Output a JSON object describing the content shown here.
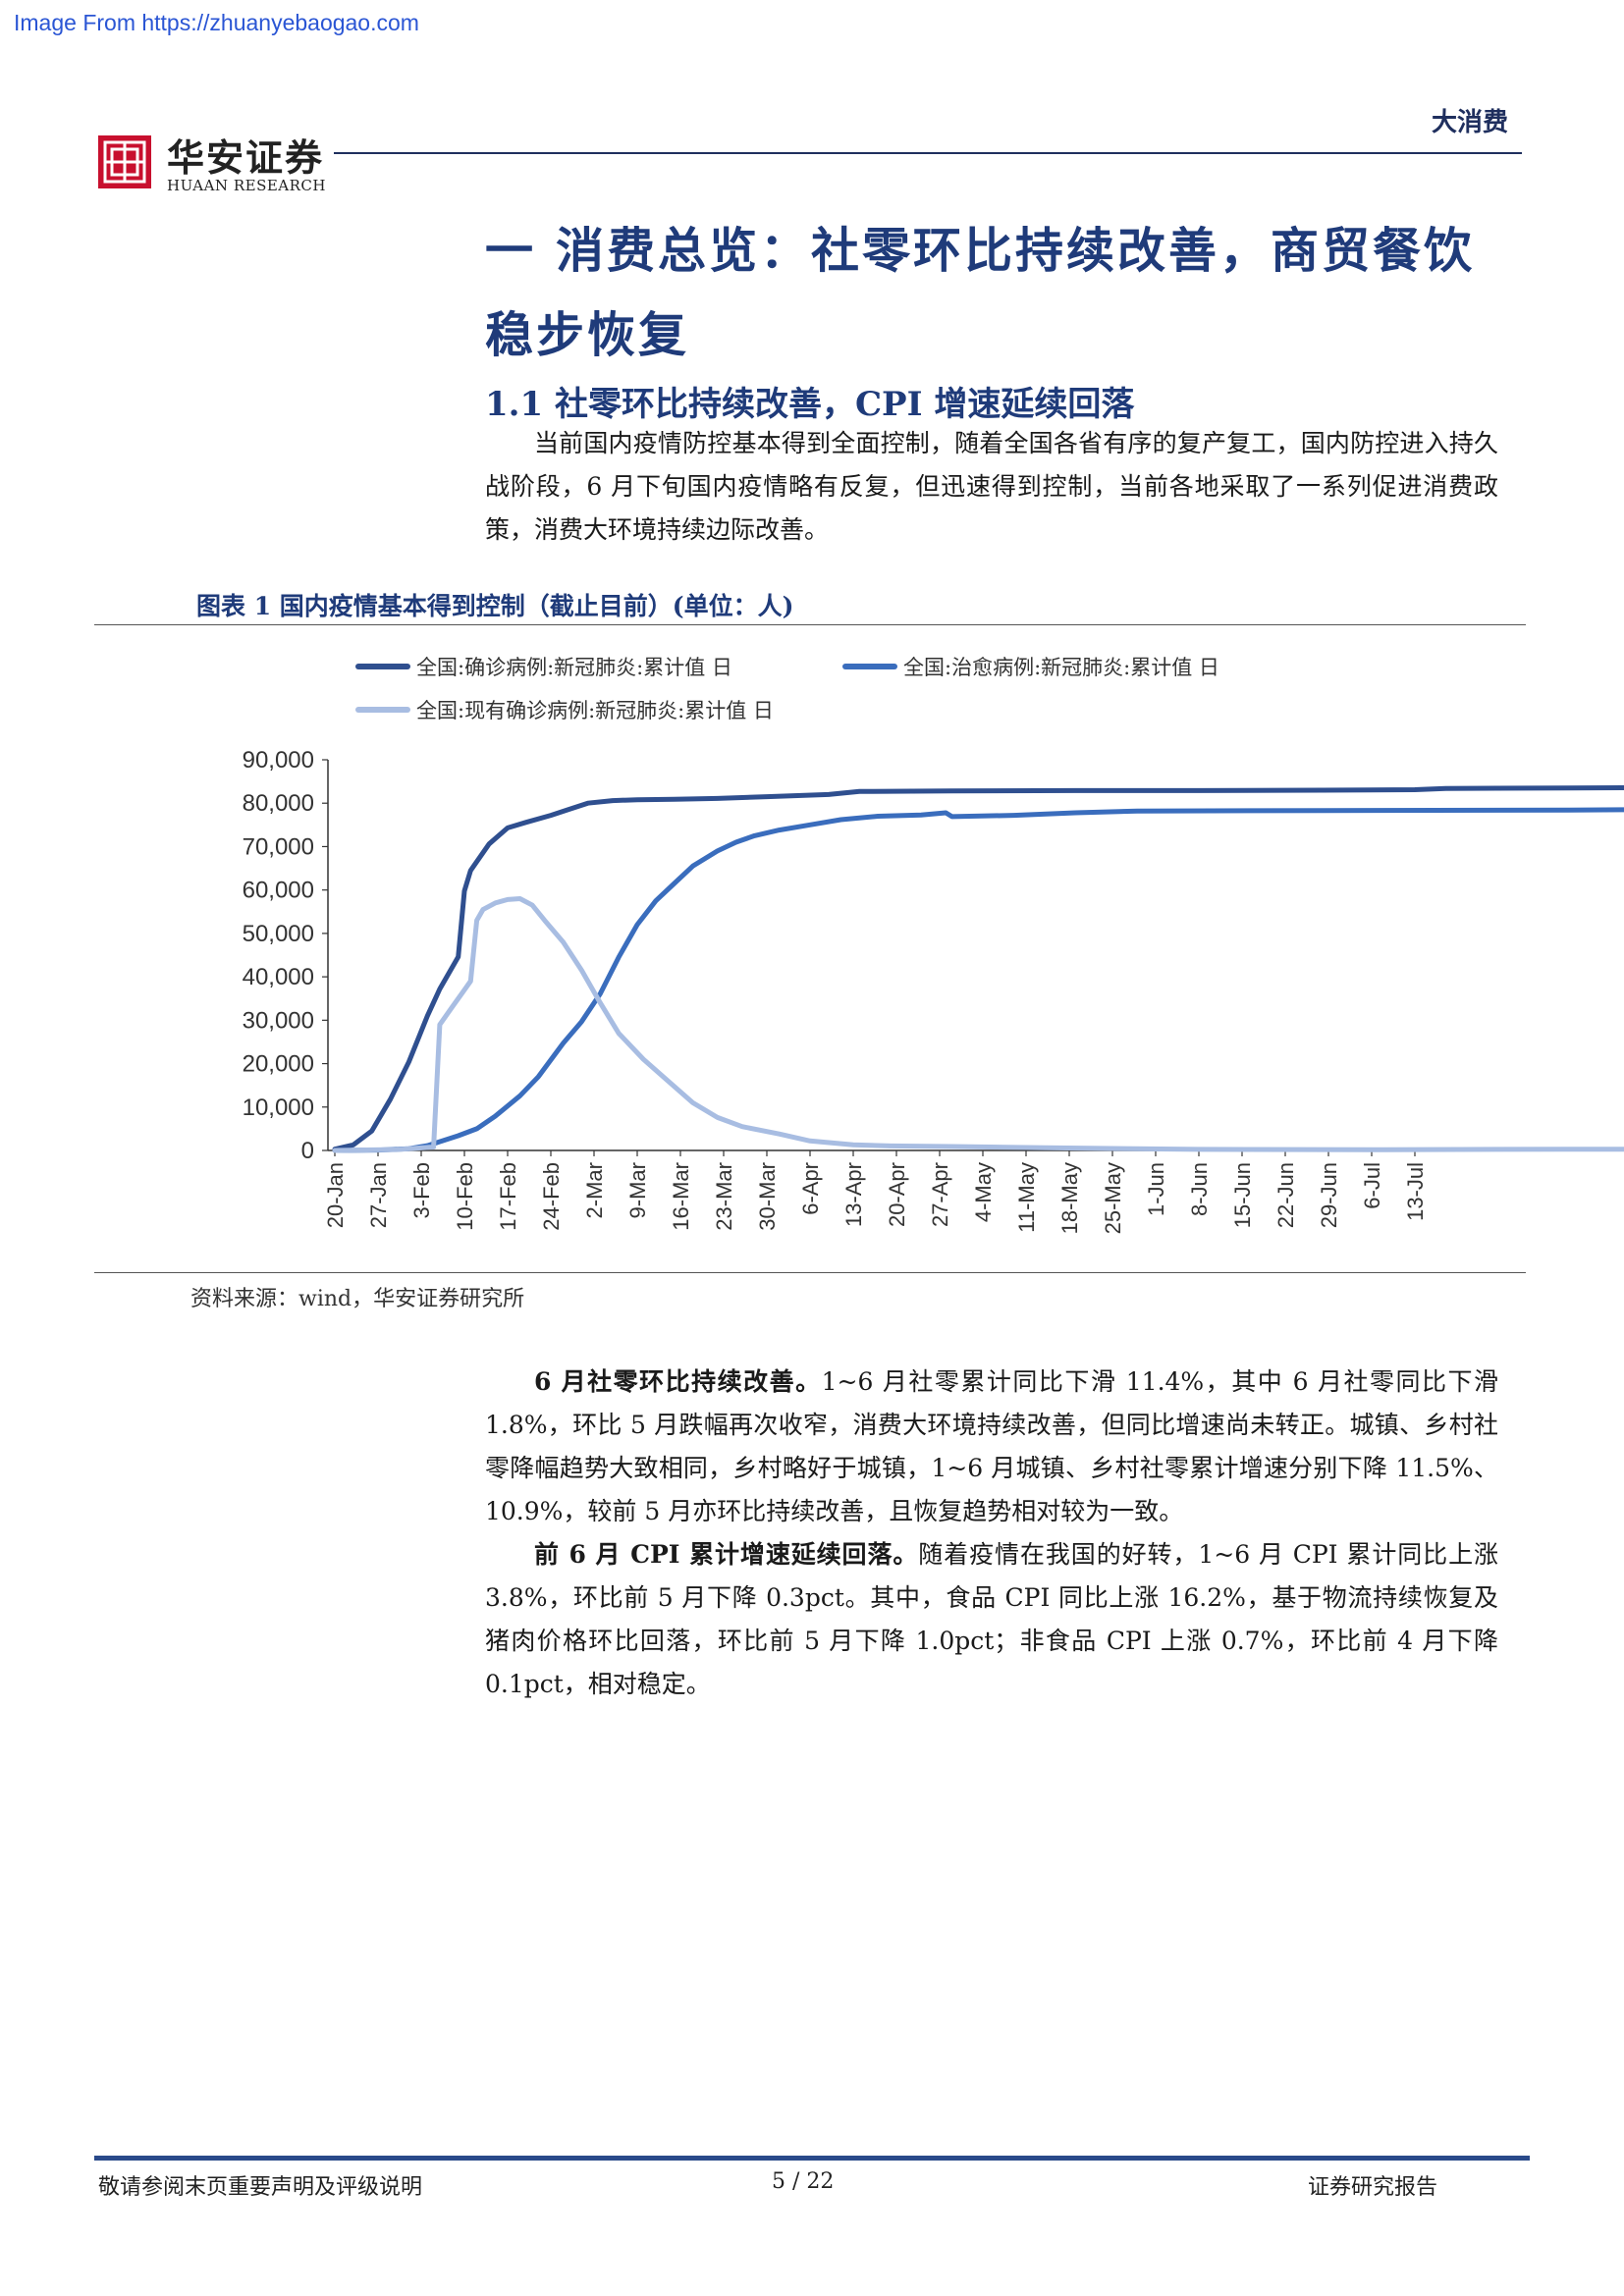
{
  "watermark": "Image From https://zhuanyebaogao.com",
  "header": {
    "brand_cn": "华安证券",
    "brand_en": "HUAAN RESEARCH",
    "section_tag": "大消费"
  },
  "title": "一 消费总览：社零环比持续改善，商贸餐饮稳步恢复",
  "subtitle": "1.1 社零环比持续改善，CPI 增速延续回落",
  "intro": "当前国内疫情防控基本得到全面控制，随着全国各省有序的复产复工，国内防控进入持久战阶段，6 月下旬国内疫情略有反复，但迅速得到控制，当前各地采取了一系列促进消费政策，消费大环境持续边际改善。",
  "figure": {
    "title": "图表 1  国内疫情基本得到控制（截止目前）(单位：人)",
    "source": "资料来源：wind，华安证券研究所"
  },
  "chart_data": {
    "type": "line",
    "title": "",
    "xlabel": "",
    "ylabel": "",
    "ylim": [
      0,
      90000
    ],
    "yticks": [
      "0",
      "10,000",
      "20,000",
      "30,000",
      "40,000",
      "50,000",
      "60,000",
      "70,000",
      "80,000",
      "90,000"
    ],
    "x_ticks": [
      "20-Jan",
      "27-Jan",
      "3-Feb",
      "10-Feb",
      "17-Feb",
      "24-Feb",
      "2-Mar",
      "9-Mar",
      "16-Mar",
      "23-Mar",
      "30-Mar",
      "6-Apr",
      "13-Apr",
      "20-Apr",
      "27-Apr",
      "4-May",
      "11-May",
      "18-May",
      "25-May",
      "1-Jun",
      "8-Jun",
      "15-Jun",
      "22-Jun",
      "29-Jun",
      "6-Jul",
      "13-Jul"
    ],
    "legend_position": "top",
    "series": [
      {
        "name": "全国:确诊病例:新冠肺炎:累计值 日",
        "color": "#2f4f8f",
        "points": [
          [
            0,
            300
          ],
          [
            3,
            1300
          ],
          [
            6,
            4500
          ],
          [
            9,
            11800
          ],
          [
            12,
            20400
          ],
          [
            15,
            31000
          ],
          [
            17,
            37200
          ],
          [
            20,
            44600
          ],
          [
            21,
            59800
          ],
          [
            22,
            64500
          ],
          [
            25,
            70600
          ],
          [
            28,
            74300
          ],
          [
            31,
            75600
          ],
          [
            35,
            77200
          ],
          [
            38,
            78600
          ],
          [
            41,
            80000
          ],
          [
            45,
            80600
          ],
          [
            49,
            80800
          ],
          [
            55,
            80900
          ],
          [
            62,
            81100
          ],
          [
            70,
            81500
          ],
          [
            80,
            82000
          ],
          [
            85,
            82700
          ],
          [
            100,
            82800
          ],
          [
            120,
            82900
          ],
          [
            140,
            82900
          ],
          [
            160,
            83000
          ],
          [
            175,
            83100
          ],
          [
            180,
            83400
          ],
          [
            200,
            83500
          ],
          [
            220,
            83600
          ]
        ]
      },
      {
        "name": "全国:治愈病例:新冠肺炎:累计值 日",
        "color": "#3a6dbd",
        "points": [
          [
            0,
            0
          ],
          [
            7,
            100
          ],
          [
            12,
            400
          ],
          [
            15,
            1100
          ],
          [
            20,
            3400
          ],
          [
            23,
            5000
          ],
          [
            26,
            7900
          ],
          [
            30,
            12600
          ],
          [
            33,
            17000
          ],
          [
            37,
            24700
          ],
          [
            40,
            29700
          ],
          [
            43,
            36100
          ],
          [
            46,
            44500
          ],
          [
            49,
            52000
          ],
          [
            52,
            57500
          ],
          [
            55,
            61500
          ],
          [
            58,
            65500
          ],
          [
            62,
            69000
          ],
          [
            65,
            71000
          ],
          [
            68,
            72500
          ],
          [
            72,
            73800
          ],
          [
            77,
            75000
          ],
          [
            82,
            76200
          ],
          [
            88,
            77000
          ],
          [
            95,
            77300
          ],
          [
            99,
            77800
          ],
          [
            100,
            76900
          ],
          [
            110,
            77200
          ],
          [
            120,
            77800
          ],
          [
            130,
            78200
          ],
          [
            160,
            78300
          ],
          [
            200,
            78400
          ],
          [
            220,
            78600
          ]
        ]
      },
      {
        "name": "全国:现有确诊病例:新冠肺炎:累计值 日",
        "color": "#a8bde2",
        "points": [
          [
            0,
            0
          ],
          [
            10,
            200
          ],
          [
            16,
            800
          ],
          [
            17,
            29000
          ],
          [
            19,
            33000
          ],
          [
            21,
            37000
          ],
          [
            22,
            39000
          ],
          [
            23,
            53000
          ],
          [
            24,
            55500
          ],
          [
            26,
            57000
          ],
          [
            28,
            57800
          ],
          [
            30,
            58000
          ],
          [
            32,
            56500
          ],
          [
            34,
            53000
          ],
          [
            37,
            48000
          ],
          [
            40,
            41500
          ],
          [
            43,
            34000
          ],
          [
            46,
            27000
          ],
          [
            50,
            21000
          ],
          [
            54,
            16000
          ],
          [
            58,
            11000
          ],
          [
            62,
            7600
          ],
          [
            66,
            5500
          ],
          [
            72,
            3800
          ],
          [
            77,
            2200
          ],
          [
            84,
            1300
          ],
          [
            90,
            1050
          ],
          [
            100,
            900
          ],
          [
            115,
            600
          ],
          [
            140,
            250
          ],
          [
            170,
            150
          ],
          [
            200,
            300
          ],
          [
            220,
            300
          ]
        ]
      }
    ]
  },
  "body1_lead": "6 月社零环比持续改善。",
  "body1_text": "1~6 月社零累计同比下滑 11.4%，其中 6 月社零同比下滑 1.8%，环比 5 月跌幅再次收窄，消费大环境持续改善，但同比增速尚未转正。城镇、乡村社零降幅趋势大致相同，乡村略好于城镇，1~6 月城镇、乡村社零累计增速分别下降 11.5%、10.9%，较前 5 月亦环比持续改善，且恢复趋势相对较为一致。",
  "body2_lead": "前 6 月 CPI 累计增速延续回落。",
  "body2_text": "随着疫情在我国的好转，1~6 月 CPI 累计同比上涨 3.8%，环比前 5 月下降 0.3pct。其中，食品 CPI 同比上涨 16.2%，基于物流持续恢复及猪肉价格环比回落，环比前 5 月下降 1.0pct；非食品 CPI 上涨 0.7%，环比前 4 月下降 0.1pct，相对稳定。",
  "footer": {
    "left": "敬请参阅末页重要声明及评级说明",
    "page": "5 / 22",
    "right": "证券研究报告"
  }
}
